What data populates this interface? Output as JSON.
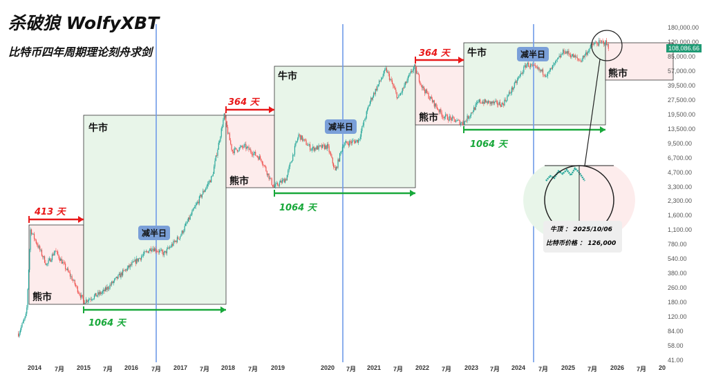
{
  "title": "杀破狼  WolfyXBT",
  "subtitle": "比特币四年周期理论刻舟求剑",
  "price_label": "108,086.66",
  "y_axis_labels": [
    "180,000.00",
    "120,000.00",
    "85,000.00",
    "57,000.00",
    "39,500.00",
    "27,500.00",
    "19,500.00",
    "13,500.00",
    "9,500.00",
    "6,700.00",
    "4,700.00",
    "3,300.00",
    "2,300.00",
    "1,600.00",
    "1,100.00",
    "780.00",
    "540.00",
    "380.00",
    "260.00",
    "180.00",
    "120.00",
    "84.00",
    "58.00",
    "41.00"
  ],
  "x_axis_labels": [
    "2014",
    "7月",
    "2015",
    "7月",
    "2016",
    "7月",
    "2017",
    "7月",
    "2018",
    "7月",
    "2019",
    "2020",
    "7月",
    "2021",
    "7月",
    "2022",
    "7月",
    "2023",
    "7月",
    "2024",
    "7月",
    "2025",
    "7月",
    "2026",
    "7月",
    "20"
  ],
  "labels": {
    "bear": "熊市",
    "bull": "牛市",
    "halving": "减半日",
    "d413": "413 天",
    "d364": "364 天",
    "d1064": "1064 天"
  },
  "note": {
    "top": "牛顶 ： 2025/10/06",
    "price": "比特币价格 ： 126,000"
  },
  "colors": {
    "up": "#26a69a",
    "down": "#ef5350",
    "bull_box": "#e8f5e9",
    "bear_box": "#fdecec",
    "halving_line": "#6f9be8",
    "red_arrow": "#e8191a",
    "green_arrow": "#18a83a"
  },
  "chart_data": {
    "type": "candlestick",
    "y_scale": "log",
    "ylim": [
      41,
      180000
    ],
    "keypoints": [
      [
        "2013-09",
        80
      ],
      [
        "2013-11",
        130
      ],
      [
        "2013-12",
        1100
      ],
      [
        "2014-04",
        450
      ],
      [
        "2014-06",
        650
      ],
      [
        "2014-10",
        330
      ],
      [
        "2015-01",
        180
      ],
      [
        "2015-06",
        230
      ],
      [
        "2015-11",
        380
      ],
      [
        "2016-06",
        700
      ],
      [
        "2016-09",
        600
      ],
      [
        "2017-01",
        950
      ],
      [
        "2017-06",
        2500
      ],
      [
        "2017-09",
        4200
      ],
      [
        "2017-12",
        19500
      ],
      [
        "2018-02",
        8000
      ],
      [
        "2018-05",
        9000
      ],
      [
        "2018-09",
        6500
      ],
      [
        "2018-12",
        3200
      ],
      [
        "2019-03",
        4000
      ],
      [
        "2019-06",
        12000
      ],
      [
        "2019-09",
        8500
      ],
      [
        "2020-01",
        9000
      ],
      [
        "2020-03",
        4800
      ],
      [
        "2020-05",
        9500
      ],
      [
        "2020-09",
        10500
      ],
      [
        "2020-12",
        28000
      ],
      [
        "2021-04",
        63000
      ],
      [
        "2021-07",
        30000
      ],
      [
        "2021-11",
        68000
      ],
      [
        "2022-01",
        40000
      ],
      [
        "2022-06",
        19500
      ],
      [
        "2022-11",
        16000
      ],
      [
        "2023-03",
        28000
      ],
      [
        "2023-09",
        26000
      ],
      [
        "2023-12",
        42000
      ],
      [
        "2024-03",
        72000
      ],
      [
        "2024-08",
        55000
      ],
      [
        "2024-12",
        100000
      ],
      [
        "2025-04",
        78000
      ],
      [
        "2025-07",
        118000
      ],
      [
        "2025-10",
        126000
      ],
      [
        "2025-11",
        108000
      ]
    ]
  }
}
